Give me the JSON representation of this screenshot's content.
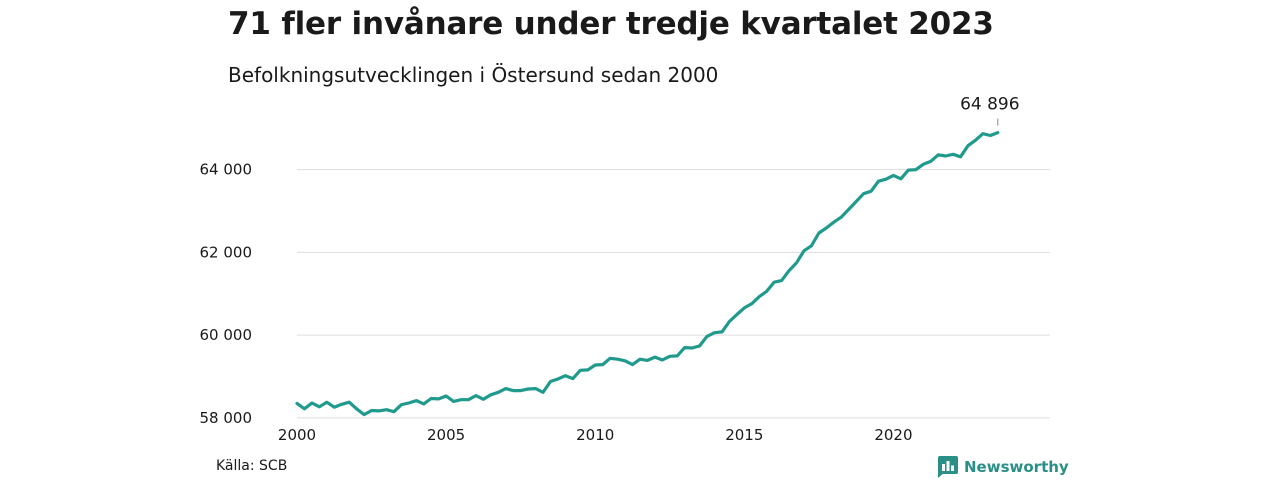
{
  "header": {
    "title": "71 fler invånare under tredje kvartalet 2023",
    "subtitle": "Befolkningsutvecklingen i Östersund sedan 2000"
  },
  "footer": {
    "source": "Källa: SCB",
    "brand": "Newsworthy",
    "brand_icon": "newsworthy-logo-icon"
  },
  "colors": {
    "line": "#1f9a8c",
    "grid": "#dddddd",
    "text": "#1a1a1a",
    "brand": "#2a8f87"
  },
  "chart_data": {
    "type": "line",
    "title": "71 fler invånare under tredje kvartalet 2023",
    "subtitle": "Befolkningsutvecklingen i Östersund sedan 2000",
    "xlabel": "",
    "ylabel": "",
    "x_ticks": [
      "2000",
      "2005",
      "2010",
      "2015",
      "2020"
    ],
    "x_tick_values": [
      2000,
      2005,
      2010,
      2015,
      2020
    ],
    "y_ticks": [
      "58 000",
      "60 000",
      "62 000",
      "64 000"
    ],
    "y_tick_values": [
      58000,
      60000,
      62000,
      64000
    ],
    "xlim": [
      2000,
      2025.25
    ],
    "ylim": [
      57950,
      65200
    ],
    "grid": "horizontal",
    "end_label": "64 896",
    "series": [
      {
        "start_year": 2000,
        "values": [
          58350,
          58220,
          58360,
          58270,
          58380,
          58260,
          58330,
          58380,
          58220,
          58080,
          58180,
          58170,
          58200,
          58150,
          58320,
          58360,
          58420,
          58340,
          58470,
          58460,
          58530,
          58400,
          58440,
          58440,
          58540,
          58450,
          58560,
          58620,
          58710,
          58660,
          58660,
          58700,
          58710,
          58620,
          58880,
          58940,
          59020,
          58950,
          59150,
          59160,
          59280,
          59290,
          59440,
          59420,
          59380,
          59290,
          59420,
          59390,
          59470,
          59400,
          59490,
          59500,
          59700,
          59690,
          59740,
          59970,
          60060,
          60080,
          60330,
          60500,
          60660,
          60760,
          60930,
          61060,
          61280,
          61320,
          61560,
          61750,
          62040,
          62160,
          62470,
          62590,
          62730,
          62850,
          63040,
          63230,
          63420,
          63480,
          63720,
          63770,
          63860,
          63780,
          63990,
          64000,
          64130,
          64200,
          64360,
          64330,
          64370,
          64310,
          64580,
          64710,
          64870,
          64825,
          64896
        ]
      }
    ]
  }
}
